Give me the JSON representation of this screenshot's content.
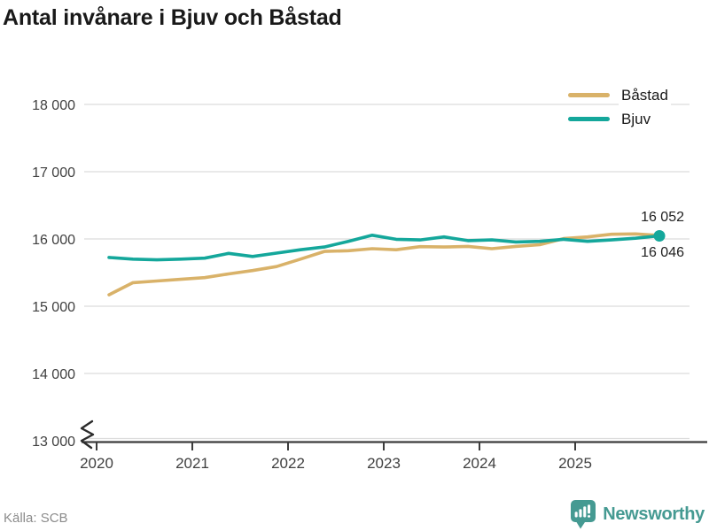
{
  "title": "Antal invånare i Bjuv och Båstad",
  "source": "Källa: SCB",
  "brand": {
    "name": "Newsworthy",
    "color": "#459a92",
    "logo_icon": "speech-bubble-bar-chart"
  },
  "colors": {
    "bastad": "#d9b269",
    "bjuv": "#14a79b",
    "grid": "#dcdcdc",
    "axis": "#3c3c3c",
    "tick_text": "#404040"
  },
  "chart_data": {
    "type": "line",
    "title": "Antal invånare i Bjuv och Båstad",
    "xlabel": "",
    "ylabel": "",
    "grid": "horizontal",
    "legend_position": "top-right",
    "axis_break": true,
    "ylim": [
      13000,
      18000
    ],
    "yticks": [
      13000,
      14000,
      15000,
      16000,
      17000,
      18000
    ],
    "ytick_labels": [
      "13 000",
      "14 000",
      "15 000",
      "16 000",
      "17 000",
      "18 000"
    ],
    "xticks": [
      2020,
      2021,
      2022,
      2023,
      2024,
      2025
    ],
    "xtick_labels": [
      "2020",
      "2021",
      "2022",
      "2023",
      "2024",
      "2025"
    ],
    "x": [
      2020.13,
      2020.38,
      2020.63,
      2020.88,
      2021.13,
      2021.38,
      2021.63,
      2021.88,
      2022.13,
      2022.38,
      2022.63,
      2022.88,
      2023.13,
      2023.38,
      2023.63,
      2023.88,
      2024.13,
      2024.38,
      2024.63,
      2024.88,
      2025.13,
      2025.38,
      2025.63,
      2025.88
    ],
    "series": [
      {
        "name": "Båstad",
        "color": "#d9b269",
        "end_label": "16 052",
        "marker_last": false,
        "values": [
          15170,
          15350,
          15375,
          15400,
          15425,
          15480,
          15530,
          15590,
          15700,
          15815,
          15825,
          15855,
          15840,
          15885,
          15880,
          15890,
          15855,
          15890,
          15915,
          16005,
          16030,
          16070,
          16075,
          16052
        ]
      },
      {
        "name": "Bjuv",
        "color": "#14a79b",
        "end_label": "16 046",
        "marker_last": true,
        "values": [
          15725,
          15700,
          15690,
          15700,
          15715,
          15785,
          15740,
          15790,
          15840,
          15880,
          15965,
          16055,
          15995,
          15985,
          16030,
          15975,
          15985,
          15955,
          15965,
          15995,
          15965,
          15985,
          16010,
          16046
        ]
      }
    ]
  }
}
